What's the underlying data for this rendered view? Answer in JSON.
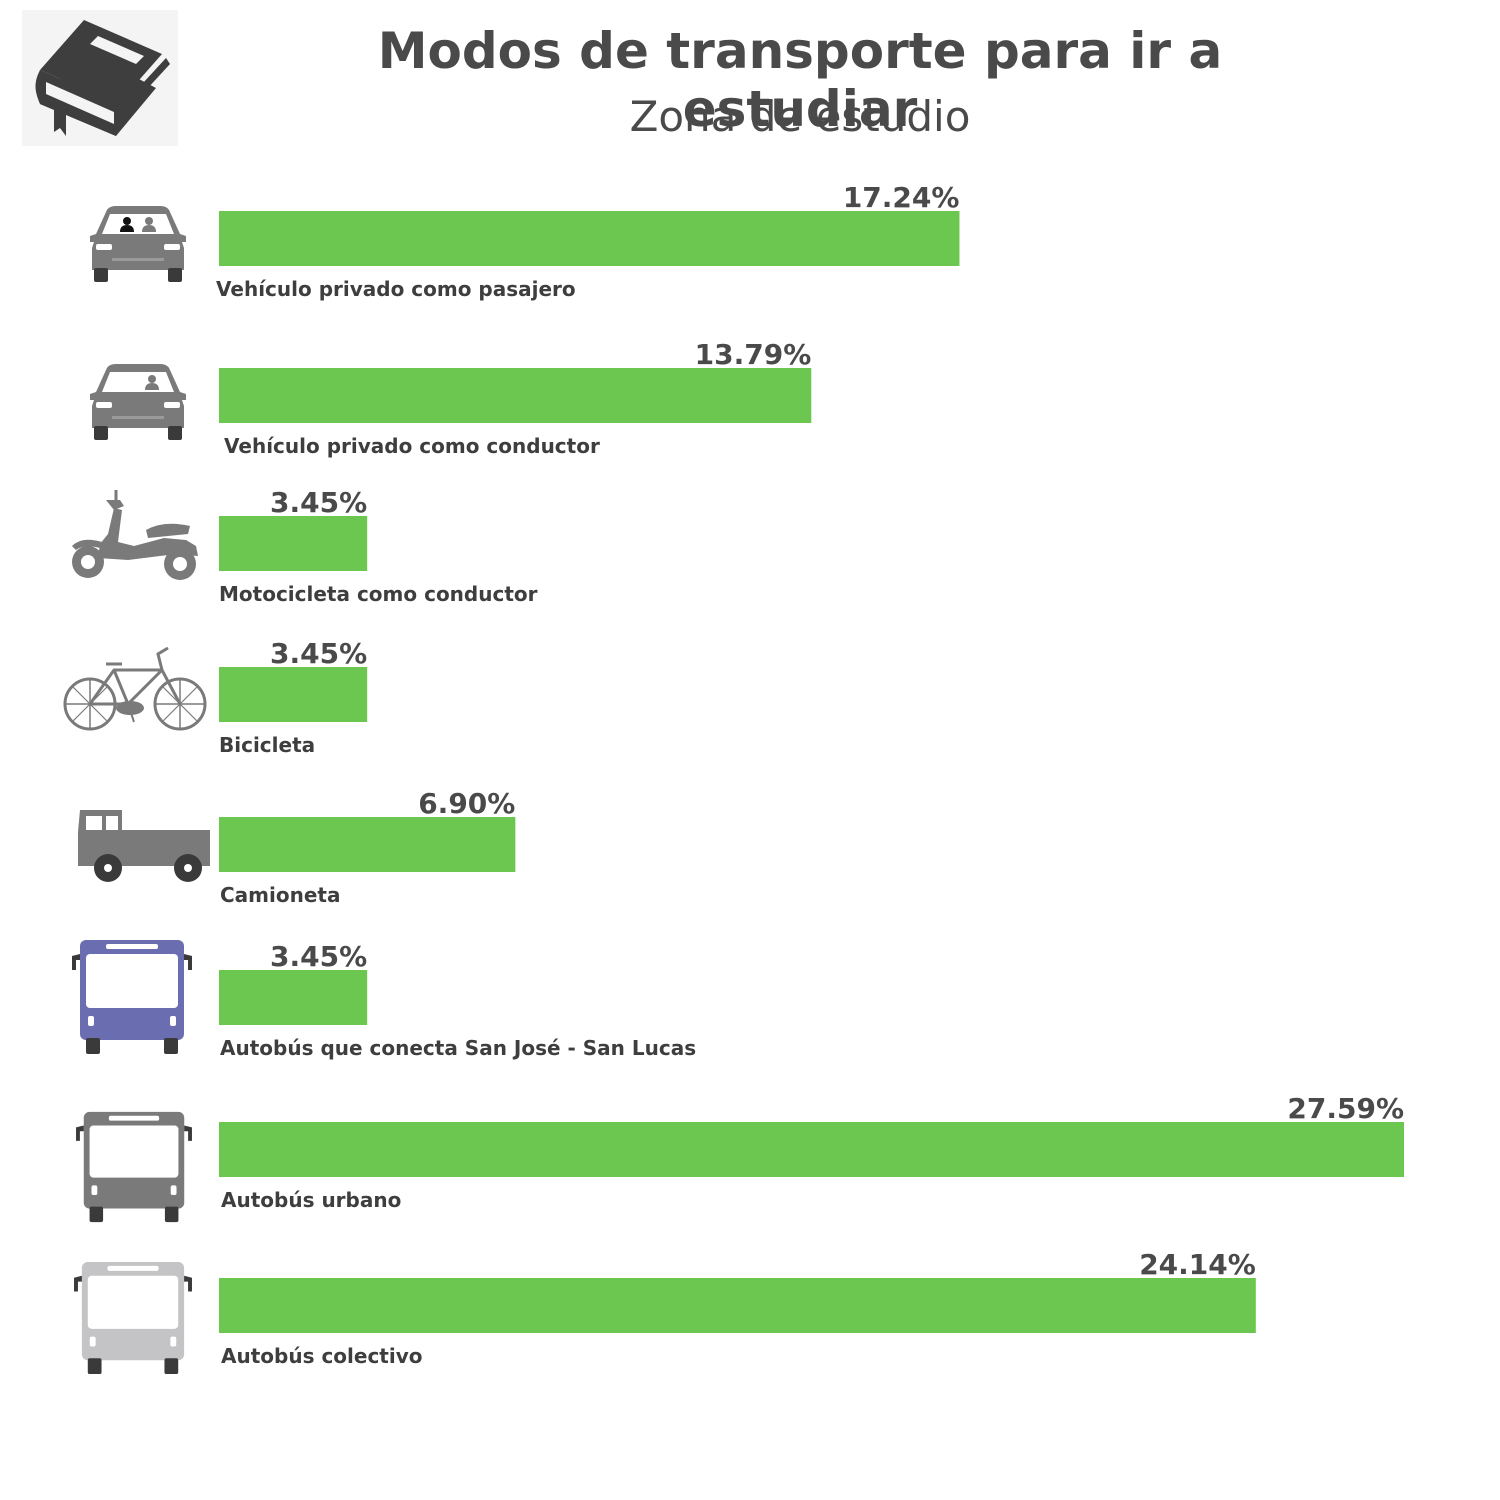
{
  "chart_data": {
    "type": "bar",
    "orientation": "horizontal",
    "title": "Modos de transporte para ir a estudiar",
    "subtitle": "Zona de estudio",
    "categories": [
      "Vehículo privado como pasajero",
      "Vehículo privado como conductor",
      "Motocicleta como conductor",
      "Bicicleta",
      "Camioneta",
      "Autobús que conecta San José - San Lucas",
      "Autobús urbano",
      "Autobús colectivo"
    ],
    "values": [
      17.24,
      13.79,
      3.45,
      3.45,
      6.9,
      3.45,
      27.59,
      24.14
    ],
    "value_labels": [
      "17.24%",
      "13.79%",
      "3.45%",
      "3.45%",
      "6.90%",
      "3.45%",
      "27.59%",
      "24.14%"
    ],
    "xlim": [
      0,
      27.59
    ],
    "grid": false,
    "legend": "none",
    "bar_color": "#6cc751"
  },
  "icons": [
    "book-icon",
    "car-passenger-icon",
    "car-driver-icon",
    "motorcycle-icon",
    "bicycle-icon",
    "pickup-truck-icon",
    "bus-intercity-icon",
    "bus-urban-icon",
    "bus-collective-icon"
  ],
  "colors": {
    "title": "#4a4a4a",
    "icon_gray": "#7a7a7a",
    "bus_intercity": "#6a6db0",
    "bus_collective": "#c4c4c6"
  }
}
